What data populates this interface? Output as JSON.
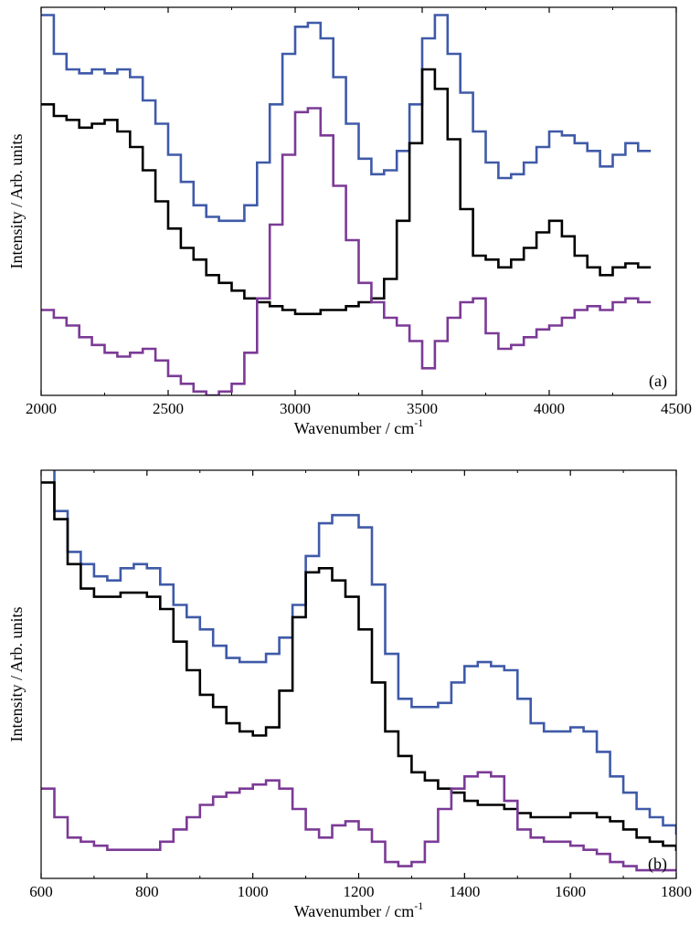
{
  "chart_data": [
    {
      "type": "line",
      "panel_label": "(a)",
      "xlabel": "Wavenumber / cm",
      "xlabel_sup": "-1",
      "ylabel": "Intensity / Arb. units",
      "xlim": [
        2000,
        4500
      ],
      "ylim": [
        0,
        1
      ],
      "xticks": [
        2000,
        2500,
        3000,
        3500,
        4000,
        4500
      ],
      "step": true,
      "series": [
        {
          "color": "#3f5aa8",
          "x": [
            2000,
            2050,
            2100,
            2150,
            2200,
            2250,
            2300,
            2350,
            2400,
            2450,
            2500,
            2550,
            2600,
            2650,
            2700,
            2750,
            2800,
            2850,
            2900,
            2950,
            3000,
            3050,
            3100,
            3150,
            3200,
            3250,
            3300,
            3350,
            3400,
            3450,
            3500,
            3550,
            3600,
            3650,
            3700,
            3750,
            3800,
            3850,
            3900,
            3950,
            4000,
            4050,
            4100,
            4150,
            4200,
            4250,
            4300,
            4350
          ],
          "y": [
            0.98,
            0.88,
            0.84,
            0.83,
            0.84,
            0.83,
            0.84,
            0.82,
            0.76,
            0.7,
            0.62,
            0.55,
            0.49,
            0.46,
            0.45,
            0.45,
            0.49,
            0.6,
            0.75,
            0.88,
            0.95,
            0.96,
            0.92,
            0.82,
            0.7,
            0.61,
            0.57,
            0.58,
            0.63,
            0.75,
            0.92,
            0.98,
            0.88,
            0.78,
            0.68,
            0.6,
            0.56,
            0.57,
            0.6,
            0.64,
            0.68,
            0.67,
            0.65,
            0.63,
            0.59,
            0.62,
            0.65,
            0.63
          ]
        },
        {
          "color": "#000000",
          "x": [
            2000,
            2050,
            2100,
            2150,
            2200,
            2250,
            2300,
            2350,
            2400,
            2450,
            2500,
            2550,
            2600,
            2650,
            2700,
            2750,
            2800,
            2850,
            2900,
            2950,
            3000,
            3050,
            3100,
            3150,
            3200,
            3250,
            3300,
            3350,
            3400,
            3450,
            3500,
            3550,
            3600,
            3650,
            3700,
            3750,
            3800,
            3850,
            3900,
            3950,
            4000,
            4050,
            4100,
            4150,
            4200,
            4250,
            4300,
            4350
          ],
          "y": [
            0.75,
            0.72,
            0.71,
            0.69,
            0.7,
            0.71,
            0.68,
            0.64,
            0.58,
            0.5,
            0.43,
            0.38,
            0.35,
            0.31,
            0.29,
            0.27,
            0.25,
            0.24,
            0.23,
            0.22,
            0.21,
            0.21,
            0.22,
            0.22,
            0.23,
            0.24,
            0.25,
            0.3,
            0.45,
            0.65,
            0.84,
            0.79,
            0.66,
            0.48,
            0.36,
            0.35,
            0.33,
            0.35,
            0.38,
            0.42,
            0.45,
            0.41,
            0.36,
            0.33,
            0.31,
            0.33,
            0.34,
            0.33
          ]
        },
        {
          "color": "#7b3a96",
          "x": [
            2000,
            2050,
            2100,
            2150,
            2200,
            2250,
            2300,
            2350,
            2400,
            2450,
            2500,
            2550,
            2600,
            2650,
            2700,
            2750,
            2800,
            2850,
            2900,
            2950,
            3000,
            3050,
            3100,
            3150,
            3200,
            3250,
            3300,
            3350,
            3400,
            3450,
            3500,
            3550,
            3600,
            3650,
            3700,
            3750,
            3800,
            3850,
            3900,
            3950,
            4000,
            4050,
            4100,
            4150,
            4200,
            4250,
            4300,
            4350
          ],
          "y": [
            0.22,
            0.2,
            0.18,
            0.15,
            0.13,
            0.11,
            0.1,
            0.11,
            0.12,
            0.09,
            0.05,
            0.03,
            0.01,
            0.0,
            0.01,
            0.03,
            0.11,
            0.25,
            0.44,
            0.62,
            0.73,
            0.74,
            0.67,
            0.54,
            0.4,
            0.29,
            0.24,
            0.2,
            0.18,
            0.14,
            0.07,
            0.14,
            0.2,
            0.24,
            0.25,
            0.16,
            0.12,
            0.13,
            0.15,
            0.17,
            0.18,
            0.2,
            0.22,
            0.23,
            0.22,
            0.24,
            0.25,
            0.24
          ]
        }
      ]
    },
    {
      "type": "line",
      "panel_label": "(b)",
      "xlabel": "Wavenumber / cm",
      "xlabel_sup": "-1",
      "ylabel": "Intensity / Arb. units",
      "xlim": [
        600,
        1800
      ],
      "ylim": [
        0,
        1
      ],
      "xticks": [
        600,
        800,
        1000,
        1200,
        1400,
        1600,
        1800
      ],
      "step": true,
      "series": [
        {
          "color": "#3f5aa8",
          "x": [
            600,
            625,
            650,
            675,
            700,
            725,
            750,
            775,
            800,
            825,
            850,
            875,
            900,
            925,
            950,
            975,
            1000,
            1025,
            1050,
            1075,
            1100,
            1125,
            1150,
            1175,
            1200,
            1225,
            1250,
            1275,
            1300,
            1325,
            1350,
            1375,
            1400,
            1425,
            1450,
            1475,
            1500,
            1525,
            1550,
            1575,
            1600,
            1625,
            1650,
            1675,
            1700,
            1725,
            1750,
            1775,
            1800
          ],
          "y": [
            1.05,
            0.9,
            0.8,
            0.77,
            0.74,
            0.73,
            0.76,
            0.77,
            0.76,
            0.72,
            0.67,
            0.64,
            0.61,
            0.57,
            0.54,
            0.53,
            0.53,
            0.55,
            0.59,
            0.67,
            0.79,
            0.87,
            0.89,
            0.89,
            0.86,
            0.72,
            0.55,
            0.44,
            0.42,
            0.42,
            0.43,
            0.48,
            0.52,
            0.53,
            0.52,
            0.51,
            0.44,
            0.38,
            0.36,
            0.36,
            0.37,
            0.36,
            0.31,
            0.25,
            0.21,
            0.17,
            0.15,
            0.13,
            0.11
          ]
        },
        {
          "color": "#000000",
          "x": [
            600,
            625,
            650,
            675,
            700,
            725,
            750,
            775,
            800,
            825,
            850,
            875,
            900,
            925,
            950,
            975,
            1000,
            1025,
            1050,
            1075,
            1100,
            1125,
            1150,
            1175,
            1200,
            1225,
            1250,
            1275,
            1300,
            1325,
            1350,
            1375,
            1400,
            1425,
            1450,
            1475,
            1500,
            1525,
            1550,
            1575,
            1600,
            1625,
            1650,
            1675,
            1700,
            1725,
            1750,
            1775,
            1800
          ],
          "y": [
            0.97,
            0.88,
            0.77,
            0.71,
            0.69,
            0.69,
            0.7,
            0.7,
            0.69,
            0.66,
            0.58,
            0.51,
            0.45,
            0.42,
            0.38,
            0.36,
            0.35,
            0.37,
            0.46,
            0.64,
            0.75,
            0.76,
            0.73,
            0.69,
            0.61,
            0.48,
            0.36,
            0.3,
            0.26,
            0.24,
            0.22,
            0.21,
            0.19,
            0.18,
            0.18,
            0.17,
            0.16,
            0.15,
            0.15,
            0.15,
            0.16,
            0.16,
            0.15,
            0.14,
            0.12,
            0.1,
            0.09,
            0.08,
            0.07
          ]
        },
        {
          "color": "#7b3a96",
          "x": [
            600,
            625,
            650,
            675,
            700,
            725,
            750,
            775,
            800,
            825,
            850,
            875,
            900,
            925,
            950,
            975,
            1000,
            1025,
            1050,
            1075,
            1100,
            1125,
            1150,
            1175,
            1200,
            1225,
            1250,
            1275,
            1300,
            1325,
            1350,
            1375,
            1400,
            1425,
            1450,
            1475,
            1500,
            1525,
            1550,
            1575,
            1600,
            1625,
            1650,
            1675,
            1700,
            1725,
            1750,
            1775,
            1800
          ],
          "y": [
            0.22,
            0.15,
            0.1,
            0.09,
            0.08,
            0.07,
            0.07,
            0.07,
            0.07,
            0.09,
            0.12,
            0.15,
            0.18,
            0.2,
            0.21,
            0.22,
            0.23,
            0.24,
            0.22,
            0.17,
            0.12,
            0.1,
            0.13,
            0.14,
            0.12,
            0.09,
            0.04,
            0.03,
            0.04,
            0.09,
            0.17,
            0.22,
            0.25,
            0.26,
            0.25,
            0.19,
            0.12,
            0.1,
            0.09,
            0.09,
            0.08,
            0.07,
            0.06,
            0.04,
            0.03,
            0.02,
            0.02,
            0.02,
            0.02
          ]
        }
      ]
    }
  ]
}
